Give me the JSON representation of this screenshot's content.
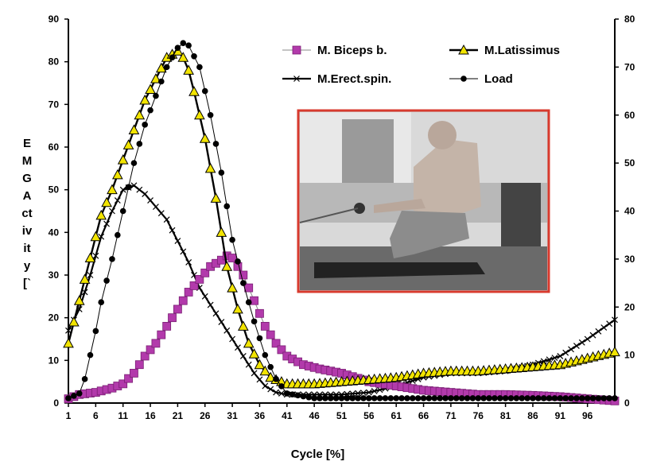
{
  "chart_data": {
    "type": "line",
    "title": "",
    "xlabel": "Cycle [%]",
    "ylabel_lines": [
      "E",
      "M",
      "G",
      "A",
      "ct",
      "iv",
      "it",
      "y",
      "[`"
    ],
    "x_ticks": [
      1,
      6,
      11,
      16,
      21,
      26,
      31,
      36,
      41,
      46,
      51,
      56,
      61,
      66,
      71,
      76,
      81,
      86,
      91,
      96
    ],
    "y_left_ticks": [
      0,
      10,
      20,
      30,
      40,
      50,
      60,
      70,
      80,
      90
    ],
    "y_right_ticks": [
      0,
      10,
      20,
      30,
      40,
      50,
      60,
      70,
      80
    ],
    "xlim": [
      1,
      101
    ],
    "ylim_left": [
      0,
      90
    ],
    "ylim_right": [
      0,
      80
    ],
    "grid": false,
    "legend_position": "top-right",
    "inset_image": "photo of person on rowing machine",
    "series": [
      {
        "name": "M. Biceps b.",
        "marker": "square",
        "color": "#b23aab",
        "axis": "left",
        "points": [
          [
            1,
            1
          ],
          [
            3,
            2
          ],
          [
            6,
            2.5
          ],
          [
            9,
            3.5
          ],
          [
            11,
            4.5
          ],
          [
            13,
            7
          ],
          [
            15,
            11
          ],
          [
            17,
            14
          ],
          [
            19,
            18
          ],
          [
            21,
            22
          ],
          [
            23,
            26
          ],
          [
            25,
            29
          ],
          [
            27,
            32
          ],
          [
            29,
            33.5
          ],
          [
            30,
            34.5
          ],
          [
            31,
            34
          ],
          [
            33,
            30
          ],
          [
            35,
            24
          ],
          [
            37,
            18
          ],
          [
            39,
            14
          ],
          [
            41,
            11
          ],
          [
            44,
            9
          ],
          [
            47,
            8
          ],
          [
            51,
            7
          ],
          [
            56,
            5
          ],
          [
            61,
            4
          ],
          [
            66,
            3
          ],
          [
            71,
            2.5
          ],
          [
            76,
            2
          ],
          [
            81,
            2
          ],
          [
            86,
            1.8
          ],
          [
            91,
            1.5
          ],
          [
            96,
            1
          ],
          [
            101,
            0.5
          ]
        ]
      },
      {
        "name": "M.Latissimus",
        "marker": "triangle",
        "color": "#f2e400",
        "axis": "left",
        "points": [
          [
            1,
            14
          ],
          [
            2,
            19
          ],
          [
            4,
            29
          ],
          [
            6,
            39
          ],
          [
            7,
            44
          ],
          [
            9,
            50
          ],
          [
            11,
            57
          ],
          [
            13,
            64
          ],
          [
            15,
            71
          ],
          [
            17,
            76
          ],
          [
            19,
            81
          ],
          [
            21,
            82.5
          ],
          [
            22,
            81
          ],
          [
            23,
            78
          ],
          [
            24,
            73
          ],
          [
            26,
            62
          ],
          [
            28,
            48
          ],
          [
            30,
            32
          ],
          [
            32,
            22
          ],
          [
            34,
            14
          ],
          [
            36,
            9
          ],
          [
            38,
            6
          ],
          [
            41,
            4.5
          ],
          [
            46,
            4.5
          ],
          [
            51,
            5
          ],
          [
            56,
            5.5
          ],
          [
            61,
            6
          ],
          [
            66,
            7
          ],
          [
            71,
            7.5
          ],
          [
            76,
            7.5
          ],
          [
            81,
            8
          ],
          [
            86,
            8.5
          ],
          [
            91,
            9
          ],
          [
            96,
            10.5
          ],
          [
            101,
            12
          ]
        ]
      },
      {
        "name": "M.Erect.spin.",
        "marker": "x",
        "color": "#000000",
        "axis": "left",
        "points": [
          [
            1,
            17
          ],
          [
            3,
            22
          ],
          [
            5,
            30
          ],
          [
            7,
            39
          ],
          [
            9,
            45
          ],
          [
            11,
            50
          ],
          [
            13,
            51
          ],
          [
            15,
            49
          ],
          [
            17,
            46
          ],
          [
            19,
            43
          ],
          [
            21,
            38
          ],
          [
            23,
            33
          ],
          [
            25,
            27
          ],
          [
            27,
            23
          ],
          [
            29,
            19
          ],
          [
            31,
            15
          ],
          [
            33,
            11
          ],
          [
            35,
            7
          ],
          [
            37,
            4
          ],
          [
            39,
            2.5
          ],
          [
            41,
            2
          ],
          [
            46,
            2
          ],
          [
            51,
            2
          ],
          [
            56,
            2.5
          ],
          [
            61,
            4
          ],
          [
            66,
            6
          ],
          [
            71,
            7
          ],
          [
            76,
            7
          ],
          [
            81,
            7.5
          ],
          [
            86,
            9
          ],
          [
            91,
            11
          ],
          [
            96,
            15
          ],
          [
            101,
            19.5
          ]
        ]
      },
      {
        "name": "Load",
        "marker": "circle",
        "color": "#000000",
        "axis": "right",
        "points": [
          [
            1,
            1
          ],
          [
            3,
            2
          ],
          [
            4,
            5
          ],
          [
            5,
            10
          ],
          [
            6,
            15
          ],
          [
            7,
            21
          ],
          [
            9,
            30
          ],
          [
            11,
            40
          ],
          [
            13,
            50
          ],
          [
            15,
            58
          ],
          [
            17,
            64
          ],
          [
            19,
            70
          ],
          [
            21,
            74
          ],
          [
            22,
            75
          ],
          [
            23,
            74.5
          ],
          [
            25,
            70
          ],
          [
            27,
            60
          ],
          [
            29,
            48
          ],
          [
            31,
            34
          ],
          [
            33,
            25
          ],
          [
            35,
            17
          ],
          [
            37,
            10
          ],
          [
            39,
            5
          ],
          [
            41,
            2
          ],
          [
            46,
            1
          ],
          [
            51,
            1
          ],
          [
            56,
            1
          ],
          [
            61,
            1
          ],
          [
            71,
            1
          ],
          [
            81,
            1
          ],
          [
            91,
            1
          ],
          [
            101,
            1
          ]
        ]
      }
    ]
  }
}
